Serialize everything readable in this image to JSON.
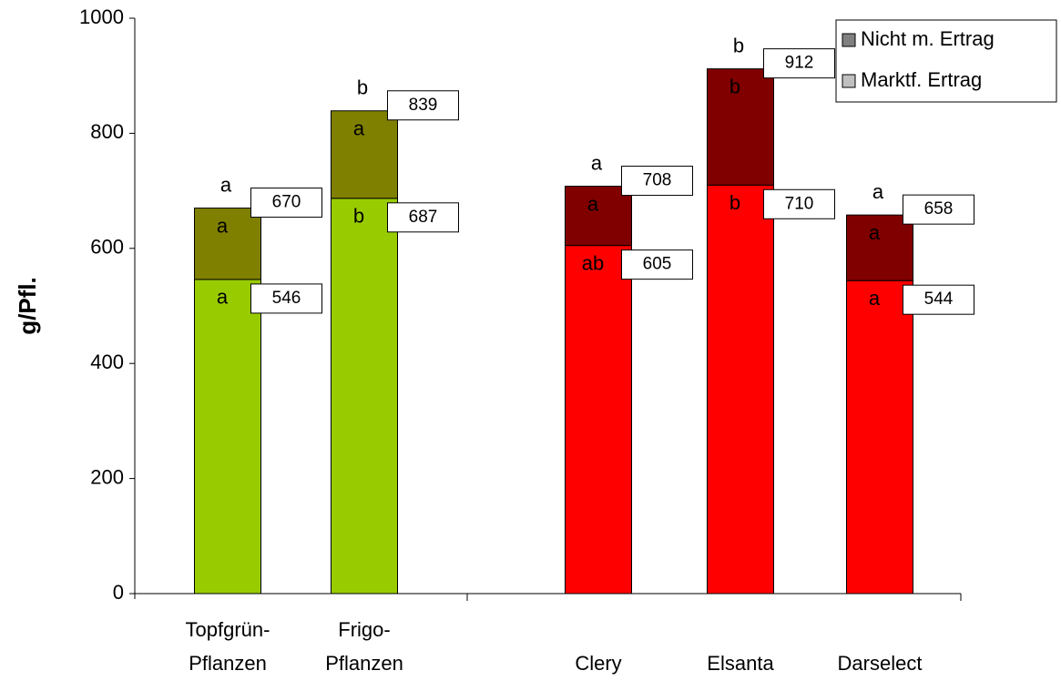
{
  "chart_data": {
    "type": "stacked_bar",
    "y_label": "g/Pfl.",
    "categories": [
      [
        "Topfgrün-",
        "Pflanzen"
      ],
      [
        "Frigo-",
        "Pflanzen"
      ],
      [
        "Clery"
      ],
      [
        "Elsanta"
      ],
      [
        "Darselect"
      ]
    ],
    "series": [
      {
        "name": "Marktf. Ertrag",
        "color": "#c0c0c0",
        "values": [
          546,
          687,
          605,
          710,
          544
        ],
        "point_colors": [
          "#99cc00",
          "#99cc00",
          "#ff0000",
          "#ff0000",
          "#ff0000"
        ],
        "letters": [
          "a",
          "b",
          "ab",
          "b",
          "a"
        ]
      },
      {
        "name": "Nicht m. Ertrag",
        "color": "#808080",
        "values": [
          124,
          152,
          103,
          202,
          114
        ],
        "point_colors": [
          "#808000",
          "#808000",
          "#800000",
          "#800000",
          "#800000"
        ],
        "letters": [
          "a",
          "a",
          "a",
          "b",
          "a"
        ]
      }
    ],
    "totals": [
      670,
      839,
      708,
      912,
      658
    ],
    "total_letters": [
      "a",
      "b",
      "a",
      "b",
      "a"
    ],
    "ylim": [
      0,
      1000
    ],
    "yticks": [
      0,
      200,
      400,
      600,
      800,
      1000
    ],
    "grid": false,
    "legend": "top-right"
  }
}
